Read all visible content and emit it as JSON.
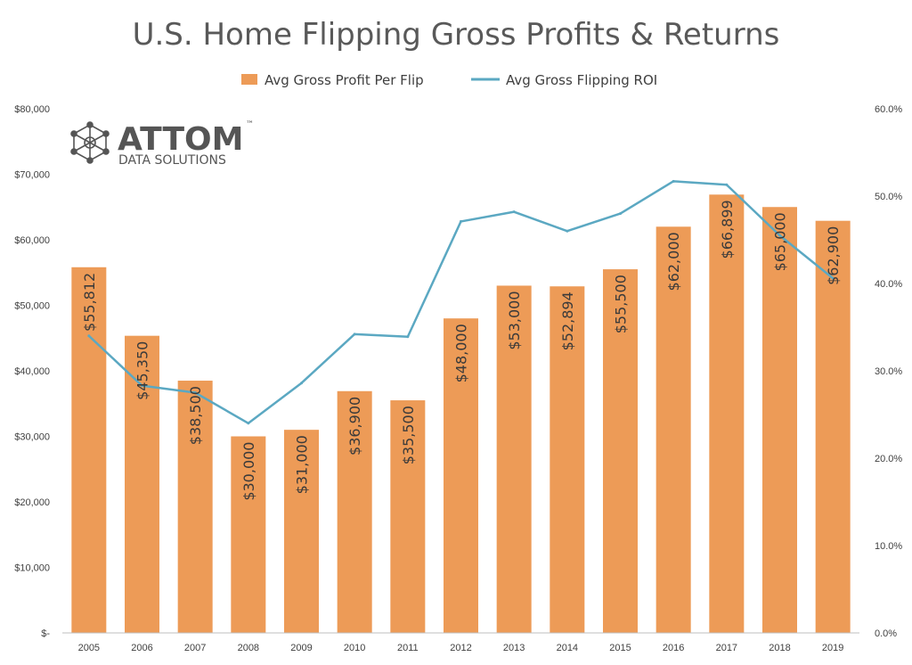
{
  "chart_data": {
    "type": "bar",
    "title": "U.S. Home Flipping Gross Profits & Returns",
    "categories": [
      "2005",
      "2006",
      "2007",
      "2008",
      "2009",
      "2010",
      "2011",
      "2012",
      "2013",
      "2014",
      "2015",
      "2016",
      "2017",
      "2018",
      "2019"
    ],
    "series": [
      {
        "name": "Avg Gross Profit Per Flip",
        "type": "bar",
        "axis": "left",
        "color": "#ED9B57",
        "values": [
          55812,
          45350,
          38500,
          30000,
          31000,
          36900,
          35500,
          48000,
          53000,
          52894,
          55500,
          62000,
          66899,
          65000,
          62900
        ],
        "data_labels": [
          "$55,812",
          "$45,350",
          "$38,500",
          "$30,000",
          "$31,000",
          "$36,900",
          "$35,500",
          "$48,000",
          "$53,000",
          "$52,894",
          "$55,500",
          "$62,000",
          "$66,899",
          "$65,000",
          "$62,900"
        ]
      },
      {
        "name": "Avg Gross Flipping ROI",
        "type": "line",
        "axis": "right",
        "color": "#5BA8C2",
        "values": [
          34.0,
          28.3,
          27.5,
          24.0,
          28.6,
          34.2,
          33.9,
          47.1,
          48.2,
          46.0,
          48.0,
          51.7,
          51.3,
          45.5,
          40.6
        ]
      }
    ],
    "y_left": {
      "ylim": [
        0,
        80000
      ],
      "tick_labels": [
        "$-",
        "$10,000",
        "$20,000",
        "$30,000",
        "$40,000",
        "$50,000",
        "$60,000",
        "$70,000",
        "$80,000"
      ]
    },
    "y_right": {
      "ylim": [
        0,
        60
      ],
      "tick_labels": [
        "0.0%",
        "10.0%",
        "20.0%",
        "30.0%",
        "40.0%",
        "50.0%",
        "60.0%"
      ]
    },
    "grid": false,
    "legend_position": "top-center"
  },
  "logo": {
    "main_text": "ATTOM",
    "trademark": "™",
    "sub_text": "DATA SOLUTIONS"
  }
}
